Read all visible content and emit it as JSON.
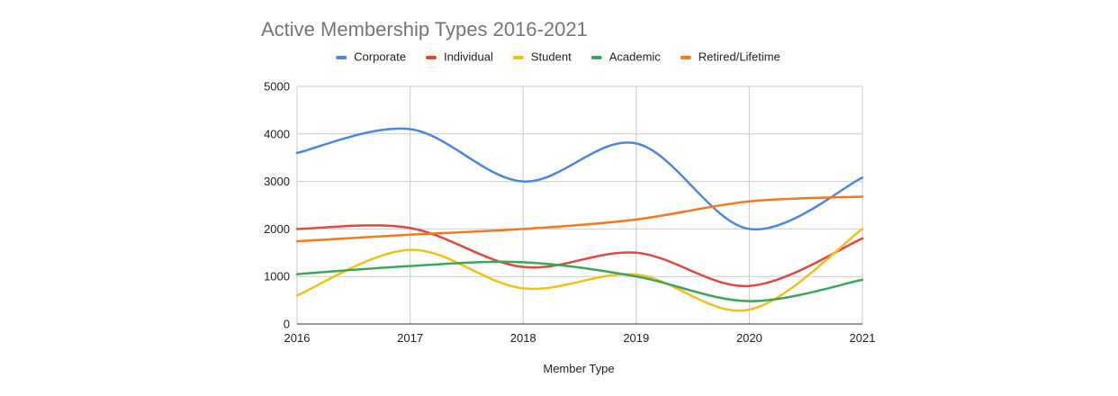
{
  "chart_data": {
    "type": "line",
    "title": "Active Membership Types 2016-2021",
    "xlabel": "Member Type",
    "ylabel": "",
    "categories": [
      "2016",
      "2017",
      "2018",
      "2019",
      "2020",
      "2021"
    ],
    "yticks": [
      "0",
      "1000",
      "2000",
      "3000",
      "4000",
      "5000"
    ],
    "ylim": [
      0,
      5000
    ],
    "grid": true,
    "smooth": true,
    "legend_position": "top",
    "series": [
      {
        "name": "Corporate",
        "color": "#4a86e8",
        "values": [
          3600,
          4100,
          3000,
          3800,
          2000,
          3080
        ]
      },
      {
        "name": "Individual",
        "color": "#e04a3c",
        "values": [
          2000,
          2020,
          1200,
          1500,
          800,
          1800
        ]
      },
      {
        "name": "Student",
        "color": "#f4bf17",
        "values": [
          600,
          1560,
          750,
          1040,
          300,
          2000
        ]
      },
      {
        "name": "Academic",
        "color": "#3aa757",
        "values": [
          1050,
          1220,
          1300,
          1000,
          480,
          930
        ]
      },
      {
        "name": "Retired/Lifetime",
        "color": "#f6781d",
        "values": [
          1740,
          1880,
          2000,
          2200,
          2580,
          2680
        ]
      }
    ]
  }
}
